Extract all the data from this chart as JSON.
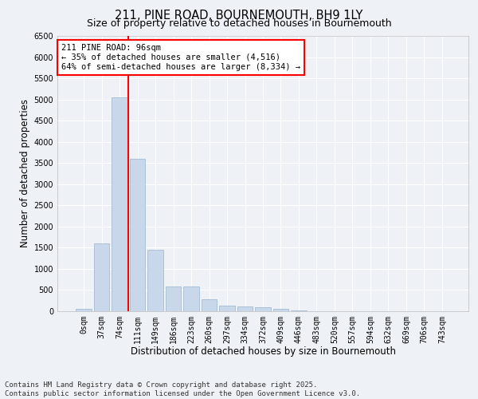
{
  "title1": "211, PINE ROAD, BOURNEMOUTH, BH9 1LY",
  "title2": "Size of property relative to detached houses in Bournemouth",
  "xlabel": "Distribution of detached houses by size in Bournemouth",
  "ylabel": "Number of detached properties",
  "categories": [
    "0sqm",
    "37sqm",
    "74sqm",
    "111sqm",
    "149sqm",
    "186sqm",
    "223sqm",
    "260sqm",
    "297sqm",
    "334sqm",
    "372sqm",
    "409sqm",
    "446sqm",
    "483sqm",
    "520sqm",
    "557sqm",
    "594sqm",
    "632sqm",
    "669sqm",
    "706sqm",
    "743sqm"
  ],
  "values": [
    50,
    1600,
    5050,
    3600,
    1450,
    580,
    580,
    280,
    140,
    120,
    90,
    50,
    20,
    5,
    5,
    2,
    2,
    1,
    1,
    0,
    0
  ],
  "bar_color": "#c8d8ea",
  "bar_edge_color": "#9ab4cc",
  "vline_x_index": 2,
  "vline_color": "red",
  "annotation_text": "211 PINE ROAD: 96sqm\n← 35% of detached houses are smaller (4,516)\n64% of semi-detached houses are larger (8,334) →",
  "annotation_box_color": "white",
  "annotation_box_edge": "red",
  "ylim": [
    0,
    6500
  ],
  "yticks": [
    0,
    500,
    1000,
    1500,
    2000,
    2500,
    3000,
    3500,
    4000,
    4500,
    5000,
    5500,
    6000,
    6500
  ],
  "footer1": "Contains HM Land Registry data © Crown copyright and database right 2025.",
  "footer2": "Contains public sector information licensed under the Open Government Licence v3.0.",
  "background_color": "#eef2f7",
  "grid_color": "#ffffff",
  "title_fontsize": 10.5,
  "subtitle_fontsize": 9,
  "axis_label_fontsize": 8.5,
  "tick_fontsize": 7,
  "footer_fontsize": 6.5,
  "annotation_fontsize": 7.5
}
